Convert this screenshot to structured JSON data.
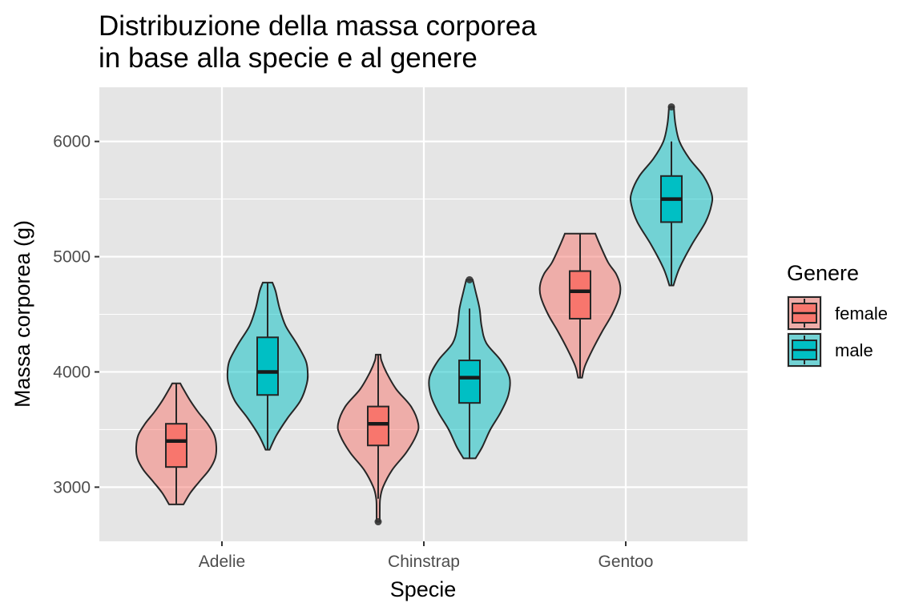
{
  "chart_data": {
    "type": "violin",
    "title_lines": [
      "Distribuzione della massa corporea",
      "in base alla specie e al genere"
    ],
    "xlabel": "Specie",
    "ylabel": "Massa corporea (g)",
    "categories": [
      "Adelie",
      "Chinstrap",
      "Gentoo"
    ],
    "ylim": [
      2530,
      6470
    ],
    "yticks": [
      3000,
      4000,
      5000,
      6000
    ],
    "grid": true,
    "legend": {
      "title": "Genere",
      "position": "right",
      "entries": [
        {
          "name": "female",
          "color": "#F8766D"
        },
        {
          "name": "male",
          "color": "#00BFC4"
        }
      ]
    },
    "colors": {
      "female": "#F8766D",
      "male": "#00BFC4",
      "panel": "#E5E5E5",
      "grid": "#FFFFFF",
      "outline": "#262626"
    },
    "groups": [
      {
        "species": "Adelie",
        "genere": "female",
        "box": {
          "min": 2850,
          "q1": 3175,
          "median": 3400,
          "q3": 3550,
          "max": 3900,
          "outliers": []
        },
        "violin": [
          [
            2850,
            0.18
          ],
          [
            2950,
            0.35
          ],
          [
            3050,
            0.58
          ],
          [
            3150,
            0.82
          ],
          [
            3250,
            0.97
          ],
          [
            3350,
            1.0
          ],
          [
            3450,
            0.95
          ],
          [
            3550,
            0.78
          ],
          [
            3650,
            0.55
          ],
          [
            3750,
            0.35
          ],
          [
            3850,
            0.18
          ],
          [
            3900,
            0.1
          ]
        ]
      },
      {
        "species": "Adelie",
        "genere": "male",
        "box": {
          "min": 3325,
          "q1": 3800,
          "median": 4000,
          "q3": 4300,
          "max": 4775,
          "outliers": []
        },
        "violin": [
          [
            3325,
            0.05
          ],
          [
            3450,
            0.22
          ],
          [
            3600,
            0.5
          ],
          [
            3750,
            0.82
          ],
          [
            3900,
            0.98
          ],
          [
            4000,
            1.0
          ],
          [
            4100,
            0.95
          ],
          [
            4250,
            0.72
          ],
          [
            4400,
            0.45
          ],
          [
            4550,
            0.3
          ],
          [
            4700,
            0.2
          ],
          [
            4775,
            0.12
          ]
        ]
      },
      {
        "species": "Chinstrap",
        "genere": "female",
        "box": {
          "min": 2900,
          "q1": 3362,
          "median": 3550,
          "q3": 3700,
          "max": 4150,
          "outliers": [
            2700
          ]
        },
        "violin": [
          [
            2700,
            0.04
          ],
          [
            2800,
            0.04
          ],
          [
            2900,
            0.05
          ],
          [
            3000,
            0.12
          ],
          [
            3150,
            0.35
          ],
          [
            3300,
            0.7
          ],
          [
            3450,
            0.95
          ],
          [
            3550,
            1.0
          ],
          [
            3700,
            0.82
          ],
          [
            3850,
            0.45
          ],
          [
            4000,
            0.2
          ],
          [
            4100,
            0.08
          ],
          [
            4150,
            0.06
          ]
        ]
      },
      {
        "species": "Chinstrap",
        "genere": "male",
        "box": {
          "min": 3250,
          "q1": 3731,
          "median": 3950,
          "q3": 4100,
          "max": 4550,
          "outliers": [
            4800
          ]
        },
        "violin": [
          [
            3250,
            0.15
          ],
          [
            3350,
            0.32
          ],
          [
            3500,
            0.52
          ],
          [
            3650,
            0.78
          ],
          [
            3800,
            0.97
          ],
          [
            3950,
            1.0
          ],
          [
            4100,
            0.78
          ],
          [
            4250,
            0.42
          ],
          [
            4400,
            0.3
          ],
          [
            4550,
            0.25
          ],
          [
            4700,
            0.15
          ],
          [
            4800,
            0.08
          ]
        ]
      },
      {
        "species": "Gentoo",
        "genere": "female",
        "box": {
          "min": 3950,
          "q1": 4462,
          "median": 4700,
          "q3": 4875,
          "max": 5200,
          "outliers": []
        },
        "violin": [
          [
            3950,
            0.05
          ],
          [
            4050,
            0.12
          ],
          [
            4200,
            0.32
          ],
          [
            4350,
            0.55
          ],
          [
            4500,
            0.8
          ],
          [
            4650,
            0.98
          ],
          [
            4750,
            1.0
          ],
          [
            4850,
            0.9
          ],
          [
            4950,
            0.7
          ],
          [
            5100,
            0.5
          ],
          [
            5200,
            0.38
          ]
        ]
      },
      {
        "species": "Gentoo",
        "genere": "male",
        "box": {
          "min": 4750,
          "q1": 5300,
          "median": 5500,
          "q3": 5700,
          "max": 6000,
          "outliers": [
            6300
          ]
        },
        "violin": [
          [
            4750,
            0.05
          ],
          [
            4900,
            0.2
          ],
          [
            5100,
            0.5
          ],
          [
            5300,
            0.85
          ],
          [
            5450,
            1.0
          ],
          [
            5550,
            1.0
          ],
          [
            5700,
            0.8
          ],
          [
            5850,
            0.45
          ],
          [
            6000,
            0.2
          ],
          [
            6150,
            0.1
          ],
          [
            6300,
            0.06
          ]
        ]
      }
    ]
  }
}
